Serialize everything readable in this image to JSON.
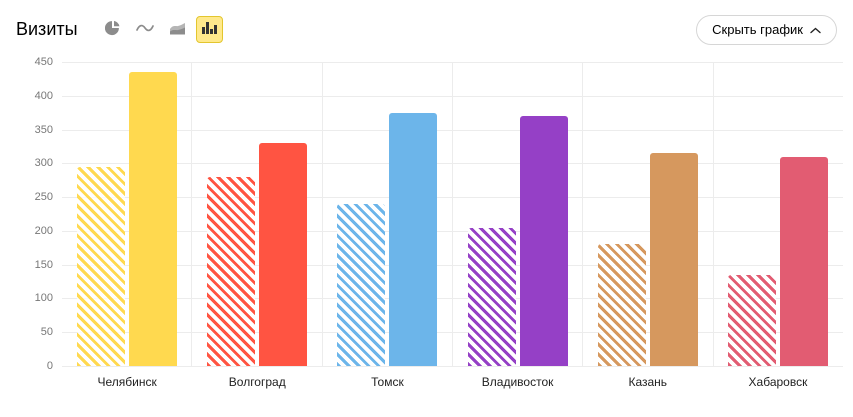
{
  "header": {
    "title": "Визиты",
    "chart_type_buttons": [
      {
        "icon": "pie-chart-icon",
        "selected": false
      },
      {
        "icon": "line-chart-icon",
        "selected": false
      },
      {
        "icon": "area-chart-icon",
        "selected": false
      },
      {
        "icon": "bar-chart-icon",
        "selected": true
      }
    ],
    "hide_button_label": "Скрыть график",
    "hide_button_icon": "chevron-up-icon"
  },
  "colors": {
    "selected_button_bg": "#ffe98c",
    "selected_button_border": "#e3c62e",
    "gridline": "#ececec",
    "tick_text": "#777777"
  },
  "chart_data": {
    "type": "bar",
    "title": "Визиты",
    "categories": [
      "Челябинск",
      "Волгоград",
      "Томск",
      "Владивосток",
      "Казань",
      "Хабаровск"
    ],
    "series": [
      {
        "name": "series_hatched",
        "style": "hatched",
        "values": [
          295,
          280,
          240,
          205,
          180,
          135
        ]
      },
      {
        "name": "series_solid",
        "style": "solid",
        "values": [
          435,
          330,
          375,
          370,
          315,
          310
        ]
      }
    ],
    "category_colors": [
      "#FFD94F",
      "#FF5442",
      "#6CB5EA",
      "#9540C6",
      "#D6985E",
      "#E25C72"
    ],
    "ylim": [
      0,
      450
    ],
    "yticks": [
      0,
      50,
      100,
      150,
      200,
      250,
      300,
      350,
      400,
      450
    ],
    "grid": true,
    "legend": "none"
  }
}
